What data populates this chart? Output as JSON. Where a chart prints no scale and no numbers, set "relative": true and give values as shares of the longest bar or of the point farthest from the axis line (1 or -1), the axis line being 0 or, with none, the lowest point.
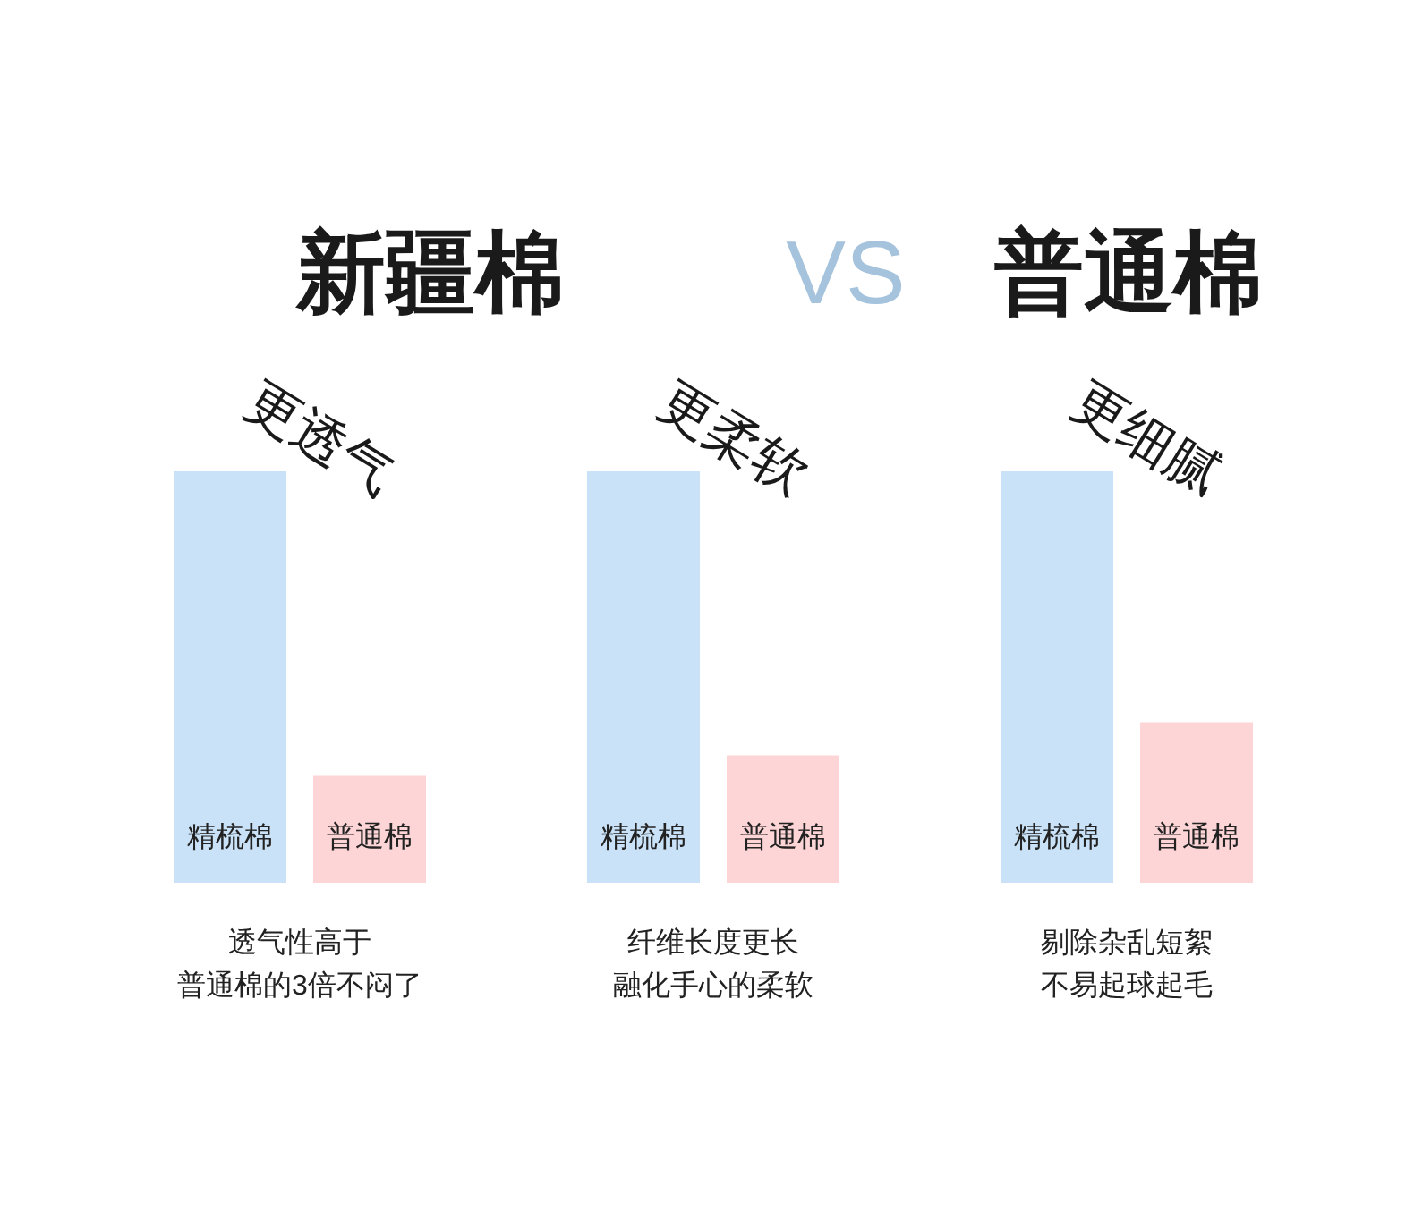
{
  "chart_data": [
    {
      "type": "other",
      "annotations": [
        "新疆棉",
        "VS",
        "普通棉"
      ],
      "colors": [
        "#1a1a1a",
        "#a5c3dc",
        "#1a1a1a"
      ]
    },
    {
      "type": "bar",
      "title": "更透气",
      "categories": [
        "精梳棉",
        "普通棉"
      ],
      "values": [
        1,
        0.26
      ],
      "colors": [
        "#c9e2f7",
        "#fdd5d6"
      ],
      "relative": true,
      "annotations": [
        "透气性高于",
        "普通棉的3倍不闷了"
      ]
    },
    {
      "type": "bar",
      "title": "更柔软",
      "categories": [
        "精梳棉",
        "普通棉"
      ],
      "values": [
        1,
        0.31
      ],
      "colors": [
        "#c9e2f7",
        "#fdd5d6"
      ],
      "relative": true,
      "annotations": [
        "纤维长度更长",
        "融化手心的柔软"
      ]
    },
    {
      "type": "bar",
      "title": "更细腻",
      "categories": [
        "精梳棉",
        "普通棉"
      ],
      "values": [
        1,
        0.39
      ],
      "colors": [
        "#c9e2f7",
        "#fdd5d6"
      ],
      "relative": true,
      "annotations": [
        "剔除杂乱短絮",
        "不易起球起毛"
      ]
    }
  ]
}
